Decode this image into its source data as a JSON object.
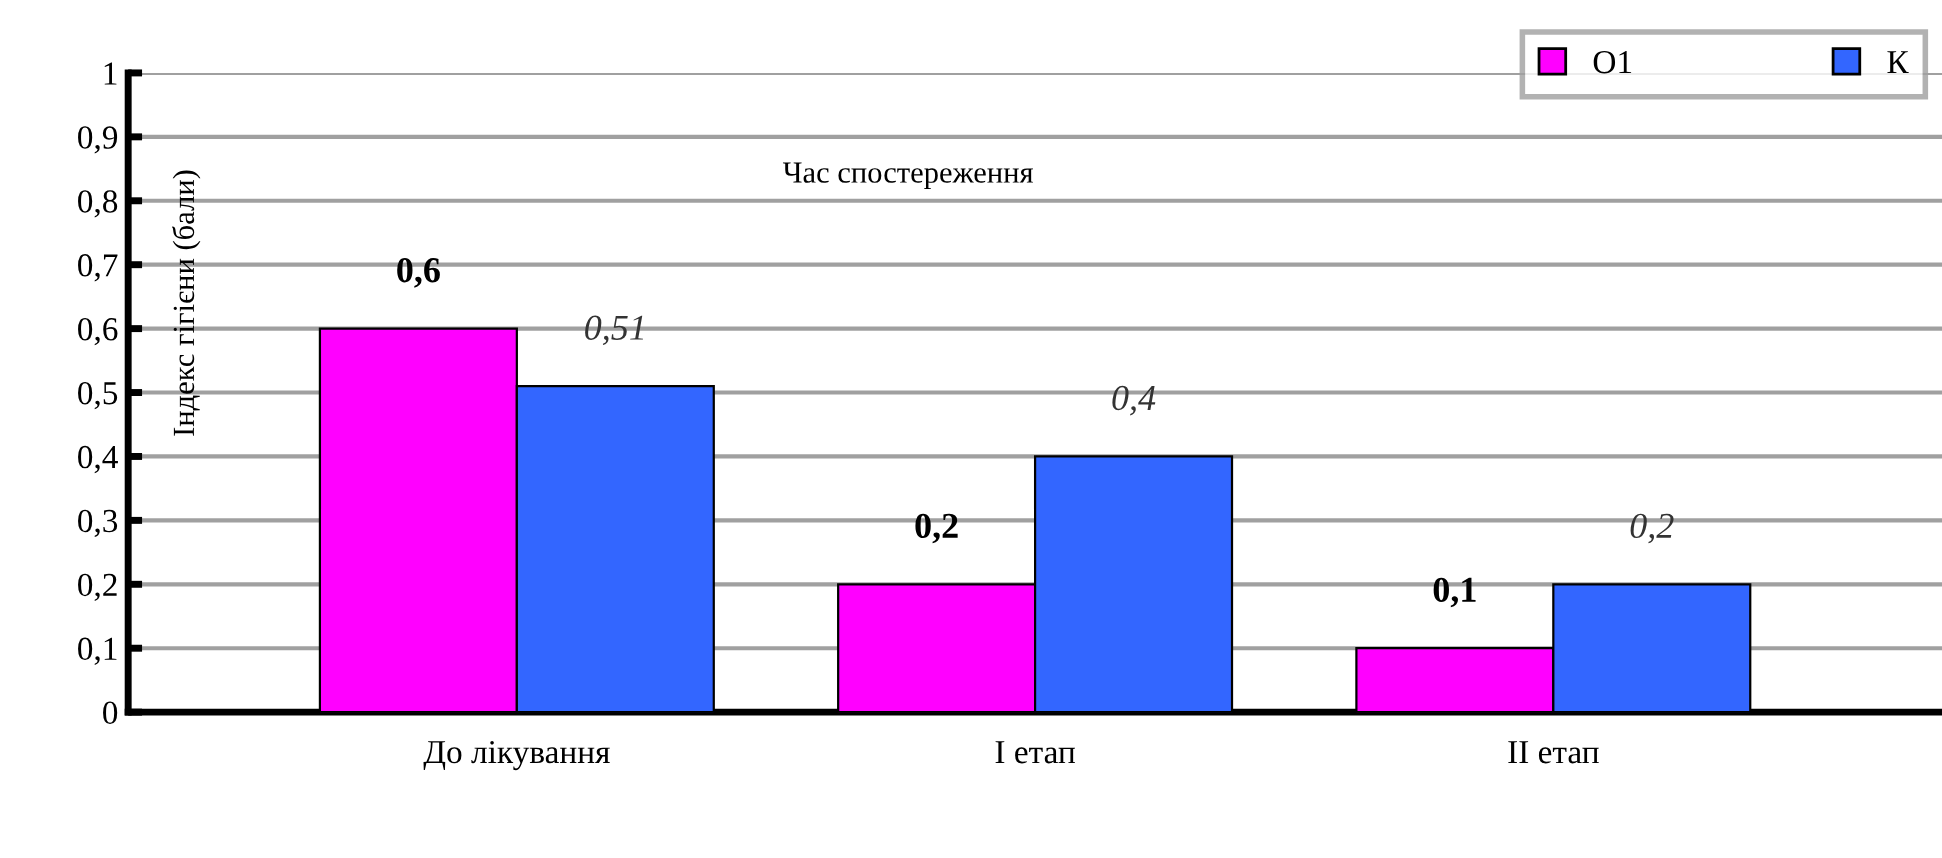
{
  "chart_data": {
    "type": "bar",
    "xlabel": "Час спостереження",
    "ylabel": "Індекс гігієни (бали)",
    "categories": [
      "До лікування",
      "І етап",
      "ІІ етап"
    ],
    "series": [
      {
        "name": "О1",
        "color": "#ff00ff",
        "values": [
          0.6,
          0.2,
          0.1
        ],
        "value_labels": [
          "0,6",
          "0,2",
          "0,1"
        ]
      },
      {
        "name": "К",
        "color": "#3366ff",
        "values": [
          0.51,
          0.4,
          0.2
        ],
        "value_labels": [
          "0,51",
          "0,4",
          "0,2"
        ]
      }
    ],
    "ylim": [
      0,
      1
    ],
    "yticks": [
      0,
      {
        "value": 0.1,
        "label": "0,1"
      },
      {
        "value": 0.2,
        "label": "0,2"
      },
      {
        "value": 0.3,
        "label": "0,3"
      },
      {
        "value": 0.4,
        "label": "0,4"
      },
      {
        "value": 0.5,
        "label": "0,5"
      },
      {
        "value": 0.6,
        "label": "0,6"
      },
      {
        "value": 0.7,
        "label": "0,7"
      },
      {
        "value": 0.8,
        "label": "0,8"
      },
      {
        "value": 0.9,
        "label": "0,9"
      },
      1
    ],
    "grid": "y",
    "legend": "top right"
  }
}
